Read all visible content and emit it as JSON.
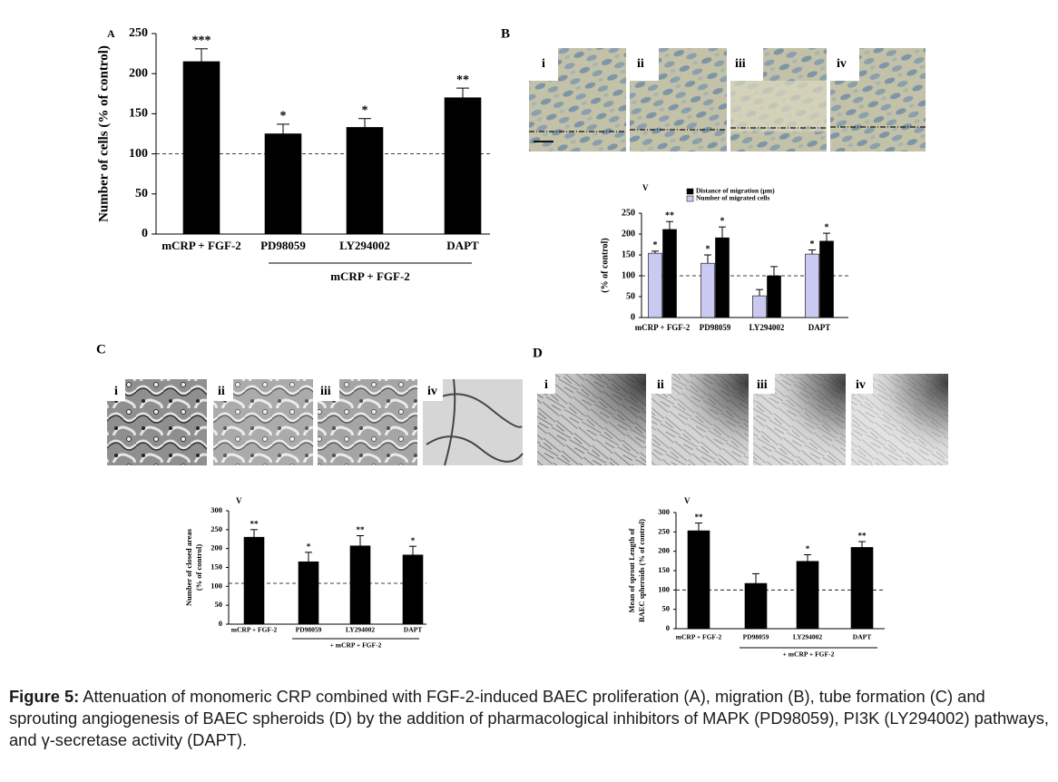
{
  "panels": [
    "A",
    "B",
    "C",
    "D"
  ],
  "micrographs": {
    "B": [
      "i",
      "ii",
      "iii",
      "iv"
    ],
    "C": [
      "i",
      "ii",
      "iii",
      "iv"
    ],
    "D": [
      "i",
      "ii",
      "iii",
      "iv"
    ]
  },
  "chart_data": [
    {
      "type": "bar",
      "ylabel": "Number of cells (% of control)",
      "categories": [
        "mCRP + FGF-2",
        "PD98059",
        "LY294002",
        "DAPT"
      ],
      "values": [
        215,
        125,
        133,
        170
      ],
      "errors": [
        16,
        12,
        11,
        12
      ],
      "annotations": [
        "***",
        "*",
        "*",
        "**"
      ],
      "color": "#000000",
      "reference_line": 100,
      "group_label": "mCRP + FGF-2",
      "ylim": [
        0,
        250
      ],
      "yticks": [
        0,
        50,
        100,
        150,
        200,
        250
      ]
    },
    {
      "type": "bar",
      "label": "V",
      "ylabel": "(% of control)",
      "categories": [
        "mCRP + FGF-2",
        "PD98059",
        "LY294002",
        "DAPT"
      ],
      "series": [
        {
          "name": "Number of migrated cells",
          "color": "#c9c9f2",
          "values": [
            154,
            130,
            52,
            152
          ],
          "errors": [
            5,
            20,
            15,
            10
          ],
          "annotations": [
            "*",
            "*",
            null,
            "*"
          ]
        },
        {
          "name": "Distance of migration (µm)",
          "color": "#000000",
          "values": [
            211,
            191,
            100,
            183
          ],
          "errors": [
            19,
            26,
            22,
            19
          ],
          "annotations": [
            "**",
            "*",
            null,
            "*"
          ]
        }
      ],
      "reference_line": 100,
      "ylim": [
        0,
        250
      ],
      "yticks": [
        0,
        50,
        100,
        150,
        200,
        250
      ]
    },
    {
      "type": "bar",
      "label": "V",
      "ylabel": [
        "Number of closed areas",
        "(% of control)"
      ],
      "categories": [
        "mCRP + FGF-2",
        "PD98059",
        "LY294002",
        "DAPT"
      ],
      "values": [
        230,
        165,
        207,
        183
      ],
      "errors": [
        20,
        25,
        27,
        23
      ],
      "annotations": [
        "**",
        "*",
        "**",
        "*"
      ],
      "color": "#000000",
      "reference_line": 108,
      "group_label": "+ mCRP + FGF-2",
      "ylim": [
        0,
        300
      ],
      "yticks": [
        0,
        50,
        100,
        150,
        200,
        250,
        300
      ]
    },
    {
      "type": "bar",
      "label": "V",
      "ylabel": [
        "Mean of sprout Length of",
        "BAEC spheroids (% of control)"
      ],
      "categories": [
        "mCRP + FGF-2",
        "PD98059",
        "LY294002",
        "DAPT"
      ],
      "values": [
        253,
        117,
        174,
        210
      ],
      "errors": [
        20,
        25,
        17,
        15
      ],
      "annotations": [
        "**",
        null,
        "*",
        "**"
      ],
      "color": "#000000",
      "reference_line": 100,
      "group_label": "+ mCRP + FGF-2",
      "ylim": [
        0,
        300
      ],
      "yticks": [
        0,
        50,
        100,
        150,
        200,
        250,
        300
      ]
    }
  ],
  "caption": {
    "label": "Figure 5:",
    "text": "Attenuation of monomeric CRP combined with FGF-2-induced BAEC proliferation (A), migration (B), tube formation (C) and sprouting angiogenesis of BAEC spheroids (D) by the addition of pharmacological inhibitors of MAPK (PD98059), PI3K (LY294002) pathways, and γ-secretase activity (DAPT)."
  }
}
